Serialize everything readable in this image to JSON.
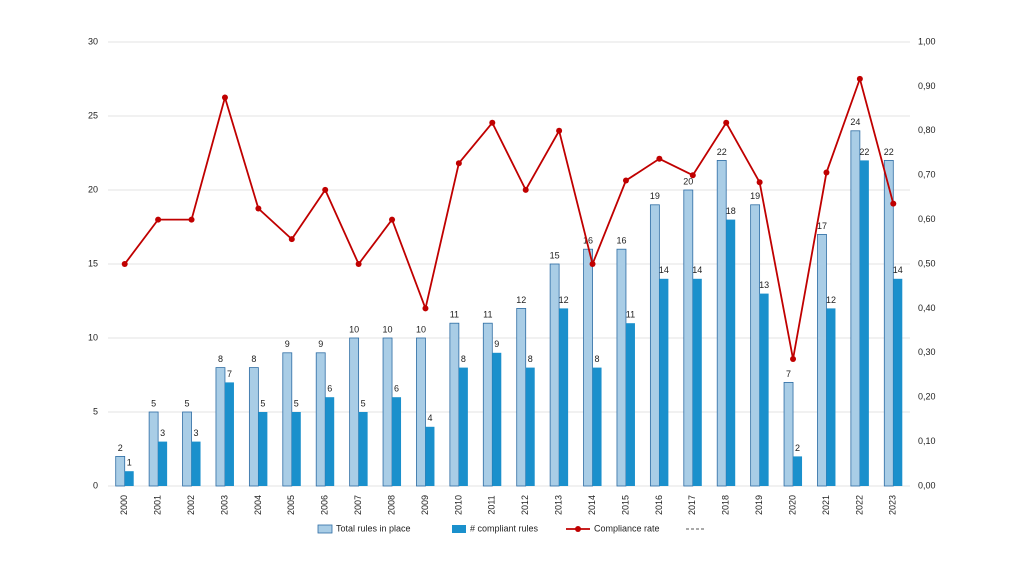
{
  "chart_data": {
    "type": "bar_line",
    "categories": [
      "2000",
      "2001",
      "2002",
      "2003",
      "2004",
      "2005",
      "2006",
      "2007",
      "2008",
      "2009",
      "2010",
      "2011",
      "2012",
      "2013",
      "2014",
      "2015",
      "2016",
      "2017",
      "2018",
      "2019",
      "2020",
      "2021",
      "2022",
      "2023"
    ],
    "series": [
      {
        "name": "Total rules in place",
        "color": "#a9cde6",
        "values": [
          2,
          5,
          5,
          8,
          8,
          9,
          9,
          10,
          10,
          10,
          11,
          11,
          12,
          15,
          16,
          16,
          19,
          20,
          22,
          19,
          7,
          17,
          24,
          22
        ]
      },
      {
        "name": "# compliant rules",
        "color": "#1a90cc",
        "values": [
          1,
          3,
          3,
          7,
          5,
          5,
          6,
          5,
          6,
          4,
          8,
          9,
          8,
          12,
          8,
          11,
          14,
          14,
          18,
          13,
          2,
          12,
          22,
          14
        ]
      },
      {
        "name": "Compliance rate",
        "color": "#c00000",
        "axis": "y2",
        "values": [
          0.5,
          0.6,
          0.6,
          0.875,
          0.625,
          0.556,
          0.667,
          0.5,
          0.6,
          0.4,
          0.727,
          0.818,
          0.667,
          0.8,
          0.5,
          0.688,
          0.737,
          0.7,
          0.818,
          0.684,
          0.286,
          0.706,
          0.917,
          0.636
        ]
      }
    ],
    "ylim": [
      0,
      30
    ],
    "yticks": [
      0,
      5,
      10,
      15,
      20,
      25,
      30
    ],
    "y2lim": [
      0,
      1
    ],
    "y2ticks": [
      {
        "value": 0,
        "label": "0,00"
      },
      {
        "value": 0.1,
        "label": "0,10"
      },
      {
        "value": 0.2,
        "label": "0,20"
      },
      {
        "value": 0.3,
        "label": "0,30"
      },
      {
        "value": 0.4,
        "label": "0,40"
      },
      {
        "value": 0.5,
        "label": "0,50"
      },
      {
        "value": 0.6,
        "label": "0,60"
      },
      {
        "value": 0.7,
        "label": "0,70"
      },
      {
        "value": 0.8,
        "label": "0,80"
      },
      {
        "value": 0.9,
        "label": "0,90"
      },
      {
        "value": 1,
        "label": "1,00"
      }
    ],
    "grid": true
  }
}
